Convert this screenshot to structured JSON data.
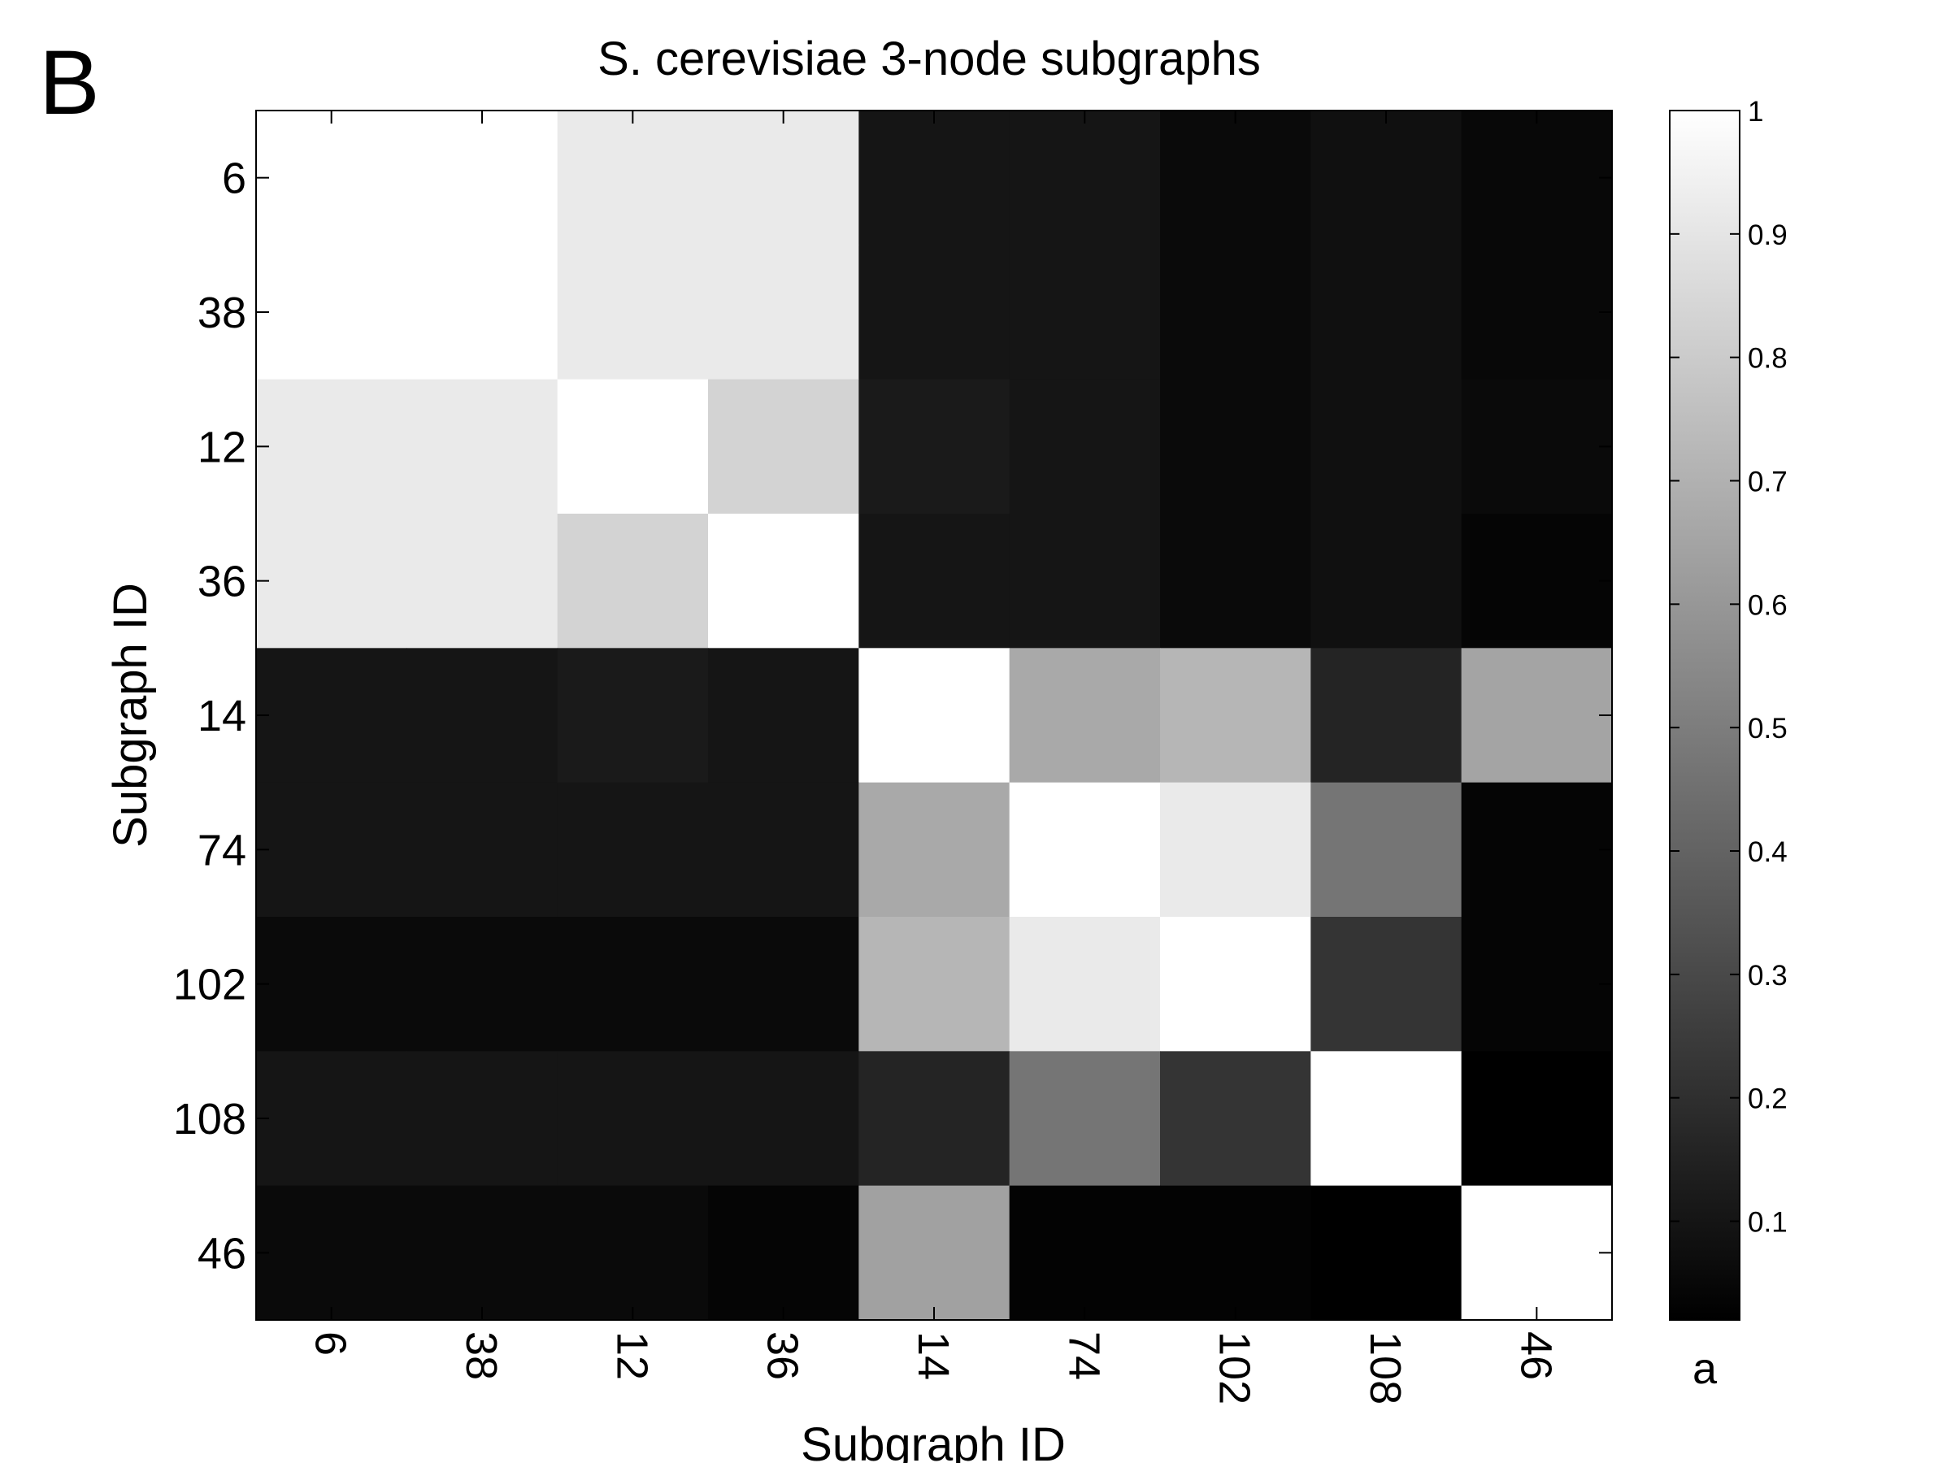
{
  "panel_letter": "B",
  "chart_data": {
    "type": "heatmap",
    "title": "S. cerevisiae 3-node subgraphs",
    "xlabel": "Subgraph ID",
    "ylabel": "Subgraph ID",
    "x_categories": [
      "6",
      "38",
      "12",
      "36",
      "14",
      "74",
      "102",
      "108",
      "46"
    ],
    "y_categories": [
      "6",
      "38",
      "12",
      "36",
      "14",
      "74",
      "102",
      "108",
      "46"
    ],
    "values": [
      [
        1.0,
        1.0,
        0.92,
        0.92,
        0.1,
        0.1,
        0.06,
        0.08,
        0.05
      ],
      [
        1.0,
        1.0,
        0.92,
        0.92,
        0.1,
        0.1,
        0.06,
        0.08,
        0.05
      ],
      [
        0.92,
        0.92,
        1.0,
        0.83,
        0.12,
        0.1,
        0.06,
        0.08,
        0.06
      ],
      [
        0.92,
        0.92,
        0.83,
        1.0,
        0.1,
        0.1,
        0.06,
        0.08,
        0.04
      ],
      [
        0.1,
        0.1,
        0.12,
        0.1,
        1.0,
        0.67,
        0.72,
        0.16,
        0.65
      ],
      [
        0.1,
        0.1,
        0.1,
        0.1,
        0.67,
        1.0,
        0.92,
        0.47,
        0.04
      ],
      [
        0.06,
        0.06,
        0.06,
        0.06,
        0.72,
        0.92,
        1.0,
        0.22,
        0.04
      ],
      [
        0.1,
        0.1,
        0.1,
        0.1,
        0.16,
        0.47,
        0.22,
        1.0,
        0.02
      ],
      [
        0.06,
        0.06,
        0.06,
        0.04,
        0.64,
        0.03,
        0.03,
        0.02,
        1.0
      ]
    ],
    "colormap": "gray",
    "color_range": [
      0.02,
      1
    ],
    "colorbar_ticks": [
      "0.1",
      "0.2",
      "0.3",
      "0.4",
      "0.5",
      "0.6",
      "0.7",
      "0.8",
      "0.9",
      "1"
    ],
    "colorbar_label": "a"
  }
}
